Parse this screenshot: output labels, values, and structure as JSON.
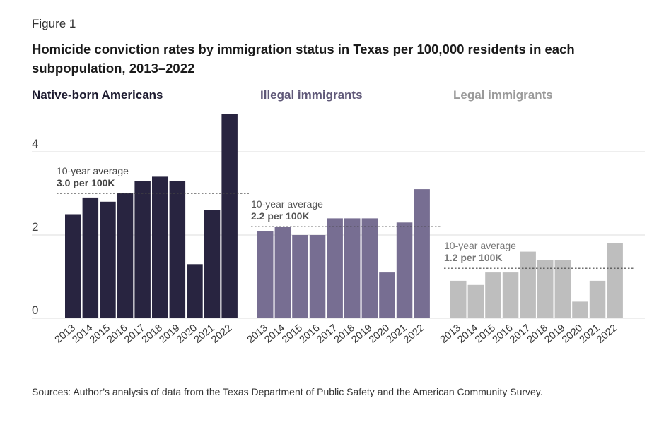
{
  "figure": {
    "label": "Figure 1",
    "title": "Homicide conviction rates by immigration status in Texas per 100,000 residents in each subpopulation, 2013–2022",
    "source": "Sources: Author’s analysis of data from the Texas Department of Public Safety and the American Community Survey."
  },
  "chart_data": {
    "type": "bar",
    "title": "Homicide conviction rates by immigration status in Texas per 100,000 residents in each subpopulation, 2013–2022",
    "xlabel": "",
    "ylabel": "",
    "ylim": [
      0,
      5
    ],
    "y_ticks": [
      "0",
      "2",
      "4"
    ],
    "grid": true,
    "categories": [
      "2013",
      "2014",
      "2015",
      "2016",
      "2017",
      "2018",
      "2019",
      "2020",
      "2021",
      "2022"
    ],
    "series": [
      {
        "name": "Native-born Americans",
        "color": "#282440",
        "values": [
          2.5,
          2.9,
          2.8,
          3.0,
          3.3,
          3.4,
          3.3,
          1.3,
          2.6,
          4.9
        ],
        "average": 3.0,
        "average_label": "10-year average",
        "average_value_label": "3.0 per 100K"
      },
      {
        "name": "Illegal immigrants",
        "color": "#776e92",
        "values": [
          2.1,
          2.2,
          2.0,
          2.0,
          2.4,
          2.4,
          2.4,
          1.1,
          2.3,
          3.1
        ],
        "average": 2.2,
        "average_label": "10-year average",
        "average_value_label": "2.2 per 100K"
      },
      {
        "name": "Legal immigrants",
        "color": "#bebebe",
        "values": [
          0.9,
          0.8,
          1.1,
          1.1,
          1.6,
          1.4,
          1.4,
          0.4,
          0.9,
          1.8
        ],
        "average": 1.2,
        "average_label": "10-year average",
        "average_value_label": "1.2 per 100K"
      }
    ]
  }
}
